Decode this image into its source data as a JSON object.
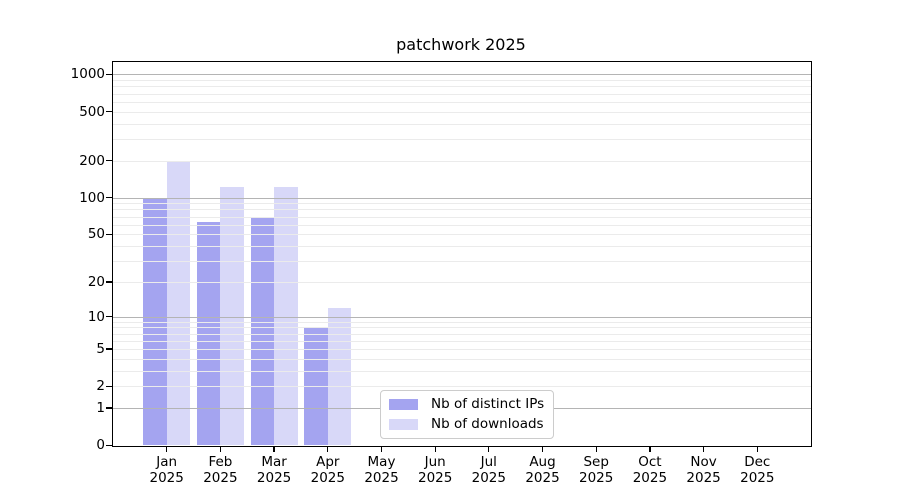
{
  "figure": {
    "title": "patchwork 2025"
  },
  "chart_data": {
    "type": "bar",
    "title": "patchwork 2025",
    "categories": [
      "Jan",
      "Feb",
      "Mar",
      "Apr",
      "May",
      "Jun",
      "Jul",
      "Aug",
      "Sep",
      "Oct",
      "Nov",
      "Dec"
    ],
    "category_year": "2025",
    "series": [
      {
        "name": "Nb of distinct IPs",
        "color": "#a4a4f0",
        "values": [
          97,
          63,
          70,
          8,
          0,
          0,
          0,
          0,
          0,
          0,
          0,
          0
        ]
      },
      {
        "name": "Nb of downloads",
        "color": "#d8d8f8",
        "values": [
          195,
          122,
          122,
          12,
          0,
          0,
          0,
          0,
          0,
          0,
          0,
          0
        ]
      }
    ],
    "xlabel": "",
    "ylabel": "",
    "y_ticks": [
      0,
      1,
      2,
      5,
      10,
      20,
      50,
      100,
      200,
      500,
      1000
    ],
    "y_scale": "log10(value+1)",
    "ylim": [
      0,
      1260
    ],
    "grid": {
      "orientation": "horizontal",
      "major_at": [
        1,
        10,
        100,
        1000
      ],
      "minor": "2-9 of each decade"
    },
    "legend_position": "inside lower-center"
  },
  "colors": {
    "background": "#ffffff",
    "spine": "#000000",
    "major_grid": "#b4b4b4",
    "minor_grid": "#ebebeb",
    "legend_border": "#cccccc",
    "bar_distinct_ips": "#a4a4f0",
    "bar_downloads": "#d8d8f8"
  }
}
